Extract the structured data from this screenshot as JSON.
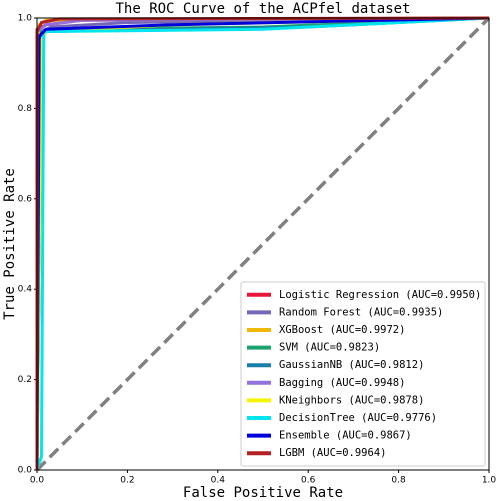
{
  "chart_data": {
    "type": "line",
    "title": "The ROC Curve of the ACPfel dataset",
    "x_label": "False Positive Rate",
    "y_label": "True Positive Rate",
    "xlim": [
      0,
      1
    ],
    "ylim": [
      0,
      1
    ],
    "xticks": [
      {
        "value": 0,
        "label": "0.0"
      },
      0.2,
      0.4,
      0.6,
      0.8,
      {
        "value": 1,
        "label": "1.0"
      }
    ],
    "yticks": [
      {
        "value": 0,
        "label": "0.0"
      },
      0.2,
      0.4,
      0.6,
      0.8,
      {
        "value": 1,
        "label": "1.0"
      }
    ],
    "legend": "lower right",
    "series": [
      {
        "name": "Logistic Regression (AUC=0.9950)",
        "color": "#e8173a",
        "x": [
          0,
          0,
          0.02,
          0.1,
          1
        ],
        "values": [
          0,
          0.975,
          0.985,
          0.995,
          1
        ]
      },
      {
        "name": "Random Forest (AUC=0.9935)",
        "color": "#7466b8",
        "x": [
          0,
          0,
          0.03,
          0.2,
          1
        ],
        "values": [
          0,
          0.96,
          0.98,
          0.99,
          1
        ]
      },
      {
        "name": "XGBoost (AUC=0.9972)",
        "color": "#f2b705",
        "x": [
          0,
          0,
          0.005,
          0.02,
          1
        ],
        "values": [
          0,
          0.9,
          0.985,
          0.995,
          1
        ]
      },
      {
        "name": "SVM (AUC=0.9823)",
        "color": "#1aa36f",
        "x": [
          0,
          0.01,
          0.02,
          0.5,
          1
        ],
        "values": [
          0,
          0.97,
          0.975,
          0.98,
          1
        ]
      },
      {
        "name": "GaussianNB (AUC=0.9812)",
        "color": "#1a7fa8",
        "x": [
          0,
          0.01,
          0.02,
          0.6,
          1
        ],
        "values": [
          0,
          0.965,
          0.97,
          0.98,
          1
        ]
      },
      {
        "name": "Bagging (AUC=0.9948)",
        "color": "#9370db",
        "x": [
          0,
          0,
          0.02,
          0.1,
          1
        ],
        "values": [
          0,
          0.97,
          0.985,
          0.995,
          1
        ]
      },
      {
        "name": "KNeighbors (AUC=0.9878)",
        "color": "#f5f500",
        "x": [
          0,
          0.01,
          0.02,
          0.3,
          1
        ],
        "values": [
          0,
          0.95,
          0.97,
          0.985,
          1
        ]
      },
      {
        "name": "DecisionTree (AUC=0.9776)",
        "color": "#00e5ee",
        "x": [
          0,
          0.01,
          0.015,
          0.5,
          1
        ],
        "values": [
          0,
          0.03,
          0.97,
          0.975,
          1
        ]
      },
      {
        "name": "Ensemble (AUC=0.9867)",
        "color": "#0000dd",
        "x": [
          0,
          0.005,
          0.02,
          0.3,
          1
        ],
        "values": [
          0,
          0.96,
          0.975,
          0.985,
          1
        ]
      },
      {
        "name": "LGBM (AUC=0.9964)",
        "color": "#b22222",
        "x": [
          0,
          0,
          0.01,
          0.05,
          1
        ],
        "values": [
          0,
          0.97,
          0.99,
          0.998,
          1
        ]
      }
    ]
  }
}
